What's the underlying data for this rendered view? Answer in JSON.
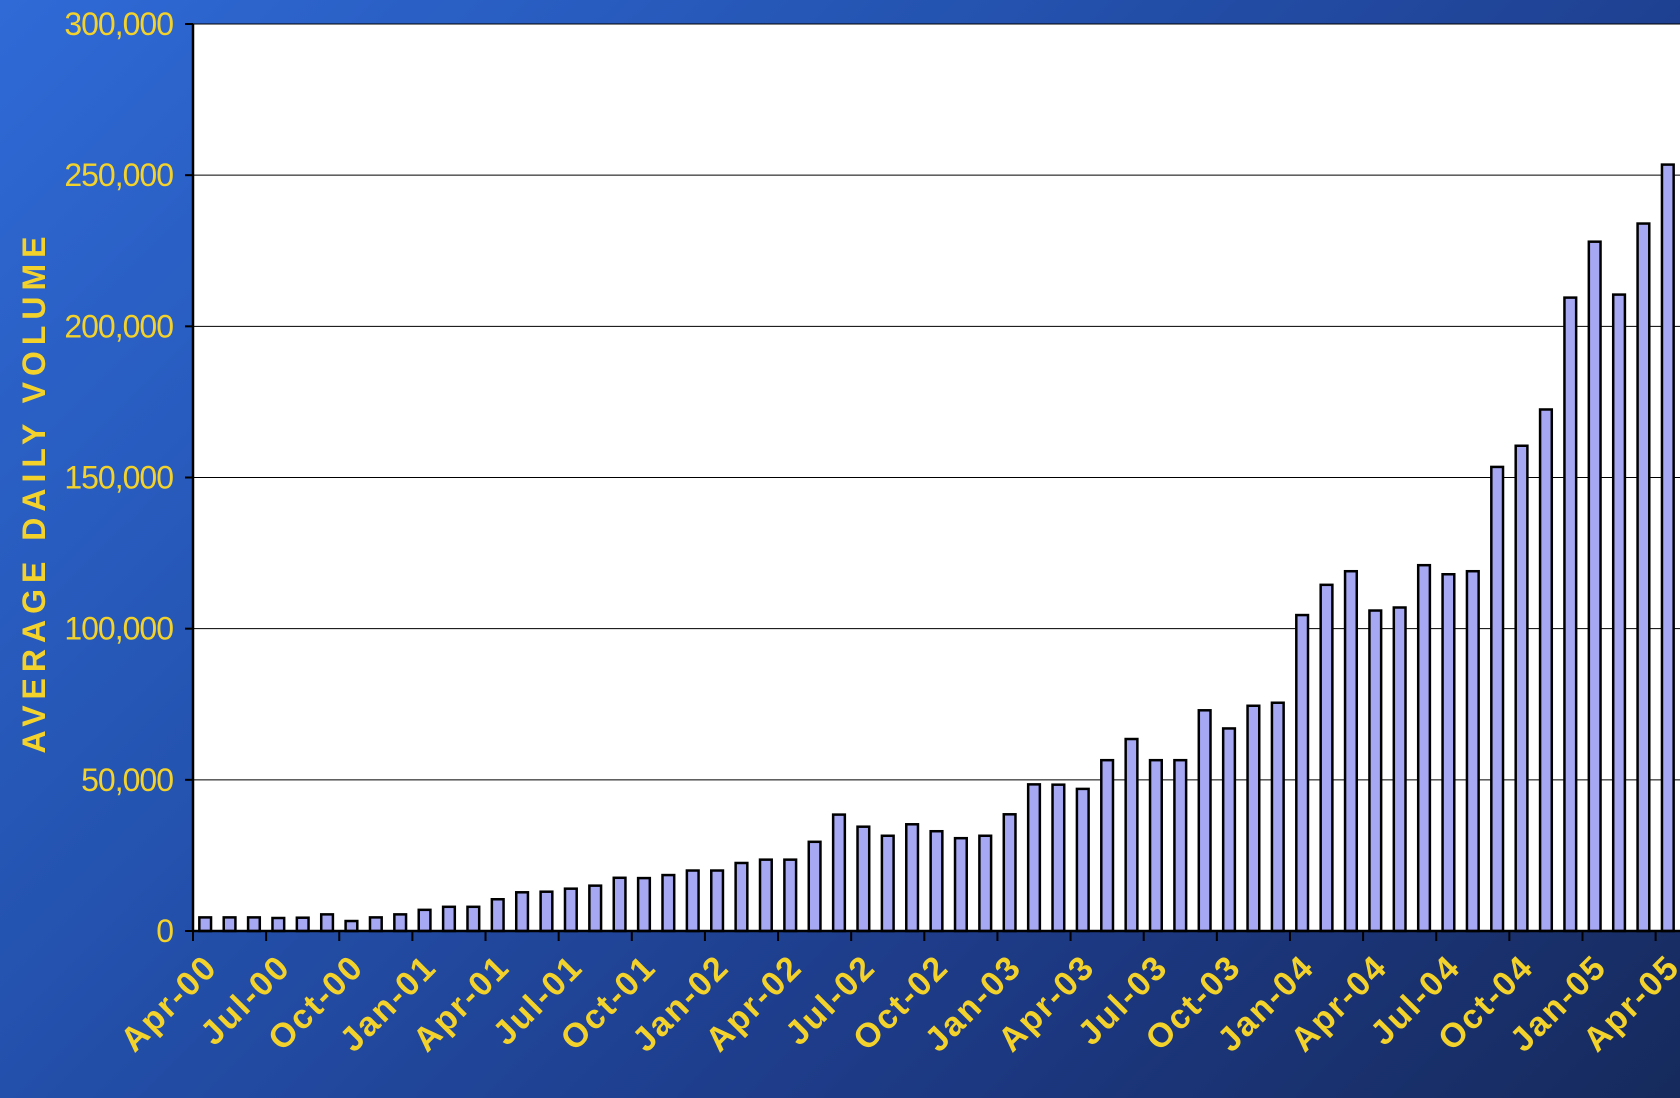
{
  "chart_data": {
    "type": "bar",
    "title": "",
    "xlabel": "",
    "ylabel": "AVERAGE DAILY VOLUME",
    "ylim": [
      0,
      300000
    ],
    "y_ticks": [
      "0",
      "50,000",
      "100,000",
      "150,000",
      "200,000",
      "250,000",
      "300,000"
    ],
    "x_tick_labels": [
      "Apr-00",
      "Jul-00",
      "Oct-00",
      "Jan-01",
      "Apr-01",
      "Jul-01",
      "Oct-01",
      "Jan-02",
      "Apr-02",
      "Jul-02",
      "Oct-02",
      "Jan-03",
      "Apr-03",
      "Jul-03",
      "Oct-03",
      "Jan-04",
      "Apr-04",
      "Jul-04",
      "Oct-04",
      "Jan-05",
      "Apr-05"
    ],
    "grid": true,
    "colors": {
      "bar": "#a6a8f4",
      "bar_outline": "#000000",
      "text": "#f3d22b",
      "plot_bg": "#ffffff"
    },
    "categories": [
      "Apr-00",
      "May-00",
      "Jun-00",
      "Jul-00",
      "Aug-00",
      "Sep-00",
      "Oct-00",
      "Nov-00",
      "Dec-00",
      "Jan-01",
      "Feb-01",
      "Mar-01",
      "Apr-01",
      "May-01",
      "Jun-01",
      "Jul-01",
      "Aug-01",
      "Sep-01",
      "Oct-01",
      "Nov-01",
      "Dec-01",
      "Jan-02",
      "Feb-02",
      "Mar-02",
      "Apr-02",
      "May-02",
      "Jun-02",
      "Jul-02",
      "Aug-02",
      "Sep-02",
      "Oct-02",
      "Nov-02",
      "Dec-02",
      "Jan-03",
      "Feb-03",
      "Mar-03",
      "Apr-03",
      "May-03",
      "Jun-03",
      "Jul-03",
      "Aug-03",
      "Sep-03",
      "Oct-03",
      "Nov-03",
      "Dec-03",
      "Jan-04",
      "Feb-04",
      "Mar-04",
      "Apr-04",
      "May-04",
      "Jun-04",
      "Jul-04",
      "Aug-04",
      "Sep-04",
      "Oct-04",
      "Nov-04",
      "Dec-04",
      "Jan-05",
      "Feb-05",
      "Mar-05",
      "Apr-05"
    ],
    "values": [
      4500,
      4500,
      4500,
      4300,
      4400,
      5500,
      3300,
      4500,
      5500,
      7000,
      8000,
      8000,
      10500,
      12800,
      13000,
      14000,
      15000,
      17600,
      17500,
      18500,
      20000,
      20000,
      22500,
      23600,
      23600,
      29500,
      38500,
      34500,
      31500,
      35300,
      33000,
      30700,
      31500,
      38600,
      48500,
      48400,
      47000,
      56500,
      63500,
      56500,
      56500,
      73000,
      67000,
      74500,
      75500,
      104500,
      114500,
      119000,
      106000,
      107000,
      121000,
      118000,
      119000,
      153500,
      160500,
      172500,
      209500,
      228000,
      210500,
      234000,
      253500
    ]
  }
}
